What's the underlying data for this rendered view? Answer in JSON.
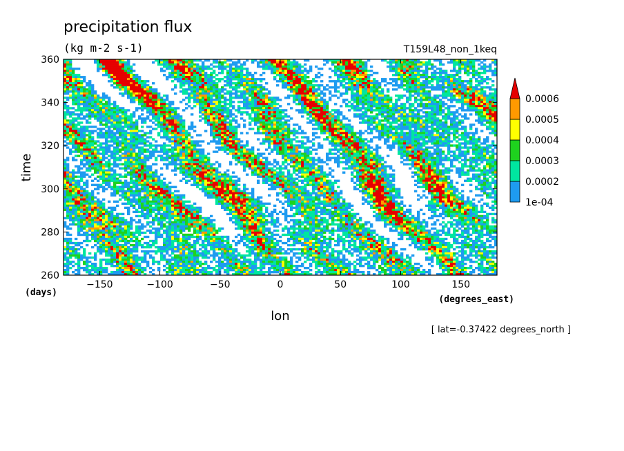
{
  "chart_data": {
    "type": "heatmap",
    "title": "precipitation flux",
    "units": "(kg m-2 s-1)",
    "run_id": "T159L48_non_1keq",
    "xlabel": "lon",
    "xunits": "(degrees_east)",
    "ylabel": "time",
    "yunits": "(days)",
    "xlim": [
      -180,
      180
    ],
    "ylim": [
      260,
      360
    ],
    "xticks": [
      -150,
      -100,
      -50,
      0,
      50,
      100,
      150
    ],
    "yticks": [
      260,
      280,
      300,
      320,
      340,
      360
    ],
    "annotation": "[ lat=-0.37422 degrees_north ]",
    "colorbar": {
      "levels": [
        0.0001,
        0.0002,
        0.0003,
        0.0004,
        0.0005,
        0.0006
      ],
      "labels": [
        "1e-04",
        "0.0002",
        "0.0003",
        "0.0004",
        "0.0005",
        "0.0006"
      ],
      "colors": [
        "#1e9bf0",
        "#00e6a0",
        "#1ed21e",
        "#ffff00",
        "#ff9900",
        "#e60000"
      ],
      "extend": "max"
    }
  }
}
